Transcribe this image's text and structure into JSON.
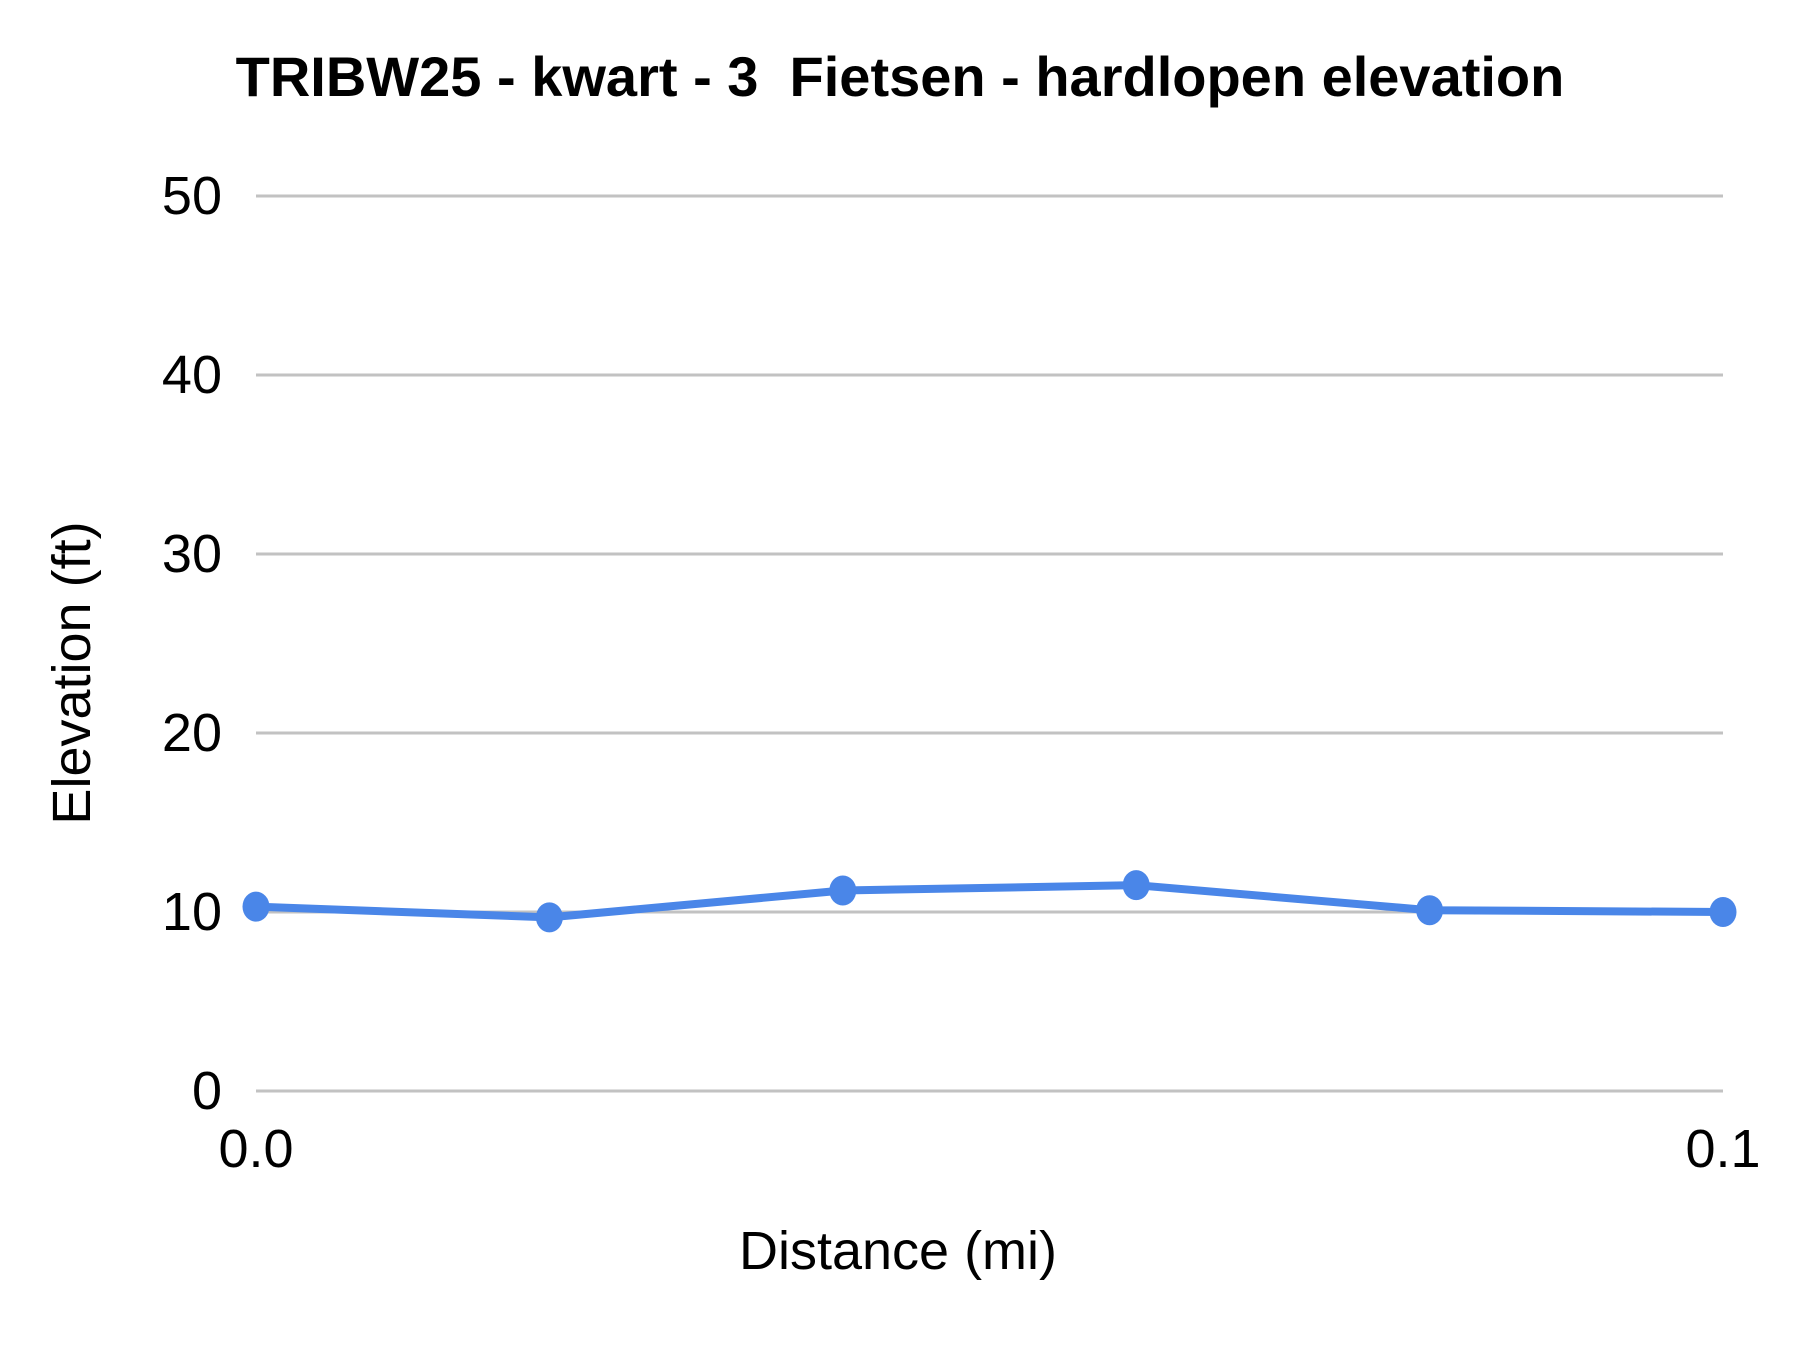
{
  "chart_data": {
    "type": "line",
    "title": "TRIBW25 - kwart - 3  Fietsen - hardlopen elevation",
    "xlabel": "Distance (mi)",
    "ylabel": "Elevation (ft)",
    "x": [
      0.0,
      0.02,
      0.04,
      0.06,
      0.08,
      0.1
    ],
    "series": [
      {
        "name": "elevation",
        "values": [
          10.3,
          9.7,
          11.2,
          11.5,
          10.1,
          10.0
        ]
      }
    ],
    "xlim": [
      0.0,
      0.1
    ],
    "ylim": [
      0,
      50
    ],
    "yticks": [
      0,
      10,
      20,
      30,
      40,
      50
    ],
    "ytick_labels": [
      "0",
      "10",
      "20",
      "30",
      "40",
      "50"
    ],
    "xticks": [
      0.0,
      0.1
    ],
    "xtick_labels": [
      "0.0",
      "0.1"
    ],
    "grid": true,
    "legend": false,
    "colors": {
      "line": "#4a86e8",
      "marker": "#4a86e8",
      "gridline": "#c2c2c2",
      "text": "#000000",
      "background": "#ffffff"
    }
  }
}
